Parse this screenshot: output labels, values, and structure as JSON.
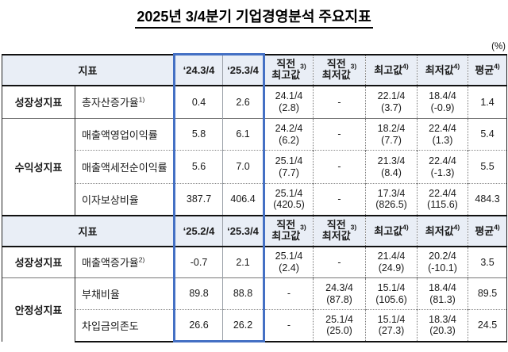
{
  "title": "2025년  3/4분기  기업경영분석  주요지표",
  "unit_label": "(%)",
  "colors": {
    "accent_blue": "#4470c4",
    "header_bg": "#e9eef6",
    "border_dark": "#111111"
  },
  "table": {
    "header1": {
      "index_label": "지표",
      "cols": [
        {
          "label": "‘24.3/4",
          "sup": ""
        },
        {
          "label": "‘25.3/4",
          "sup": ""
        },
        {
          "label": "직전\n최고값",
          "sup": "3)"
        },
        {
          "label": "직전\n최저값",
          "sup": "3)"
        },
        {
          "label": "최고값",
          "sup": "4)"
        },
        {
          "label": "최저값",
          "sup": "4)"
        },
        {
          "label": "평균",
          "sup": "4)"
        }
      ]
    },
    "header2": {
      "index_label": "지표",
      "cols": [
        {
          "label": "‘25.2/4",
          "sup": ""
        },
        {
          "label": "‘25.3/4",
          "sup": ""
        },
        {
          "label": "직전\n최고값",
          "sup": "3)"
        },
        {
          "label": "직전\n최저값",
          "sup": "3)"
        },
        {
          "label": "최고값",
          "sup": "4)"
        },
        {
          "label": "최저값",
          "sup": "4)"
        },
        {
          "label": "평균",
          "sup": "4)"
        }
      ]
    },
    "section1": {
      "rows": [
        {
          "category": "성장성지표",
          "name": "총자산증가율",
          "name_sup": "1)",
          "values": [
            "0.4",
            "2.6",
            "24.1/4\n(2.8)",
            "-",
            "22.1/4\n(3.7)",
            "18.4/4\n(-0.9)",
            "1.4"
          ]
        },
        {
          "category": "수익성지표",
          "name": "매출액영업이익률",
          "name_sup": "",
          "values": [
            "5.8",
            "6.1",
            "24.2/4\n(6.2)",
            "-",
            "18.2/4\n(7.7)",
            "22.4/4\n(1.3)",
            "5.4"
          ]
        },
        {
          "name": "매출액세전순이익률",
          "name_sup": "",
          "values": [
            "5.6",
            "7.0",
            "25.1/4\n(7.7)",
            "-",
            "21.3/4\n(8.4)",
            "22.4/4\n(-1.3)",
            "5.5"
          ]
        },
        {
          "name": "이자보상비율",
          "name_sup": "",
          "values": [
            "387.7",
            "406.4",
            "25.1/4\n(420.5)",
            "-",
            "17.3/4\n(826.5)",
            "22.4/4\n(115.6)",
            "484.3"
          ]
        }
      ]
    },
    "section2": {
      "rows": [
        {
          "category": "성장성지표",
          "name": "매출액증가율",
          "name_sup": "2)",
          "values": [
            "-0.7",
            "2.1",
            "25.1/4\n(2.4)",
            "-",
            "21.4/4\n(24.9)",
            "20.2/4\n(-10.1)",
            "3.5"
          ]
        },
        {
          "category": "안정성지표",
          "name": "부채비율",
          "name_sup": "",
          "values": [
            "89.8",
            "88.8",
            "-",
            "24.3/4\n(87.8)",
            "15.1/4\n(105.6)",
            "18.4/4\n(81.3)",
            "89.5"
          ]
        },
        {
          "name": "차입금의존도",
          "name_sup": "",
          "values": [
            "26.6",
            "26.2",
            "-",
            "25.1/4\n(25.0)",
            "15.1/4\n(27.3)",
            "18.3/4\n(20.3)",
            "24.5"
          ]
        }
      ]
    }
  }
}
